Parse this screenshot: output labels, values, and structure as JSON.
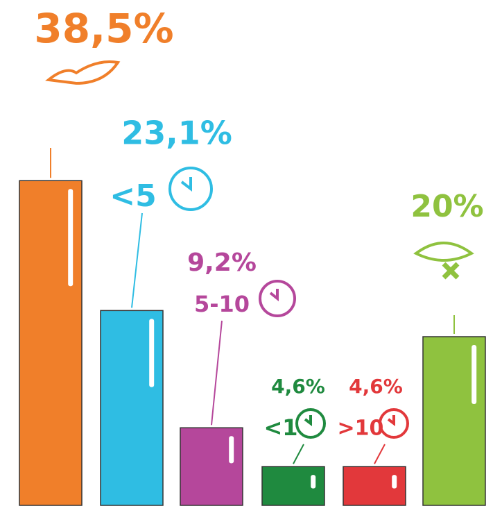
{
  "chart_data": {
    "type": "bar",
    "categories": [
      null,
      "<5",
      "5-10",
      "<1",
      ">10",
      null
    ],
    "values": [
      38.5,
      23.1,
      9.2,
      4.6,
      4.6,
      20
    ],
    "value_labels": [
      "38,5%",
      "23,1%",
      "9,2%",
      "4,6%",
      "4,6%",
      "20%"
    ],
    "colors": [
      "#f07f2a",
      "#2fbde3",
      "#b5479b",
      "#1f8a3f",
      "#e2383b",
      "#8fc23f"
    ]
  }
}
